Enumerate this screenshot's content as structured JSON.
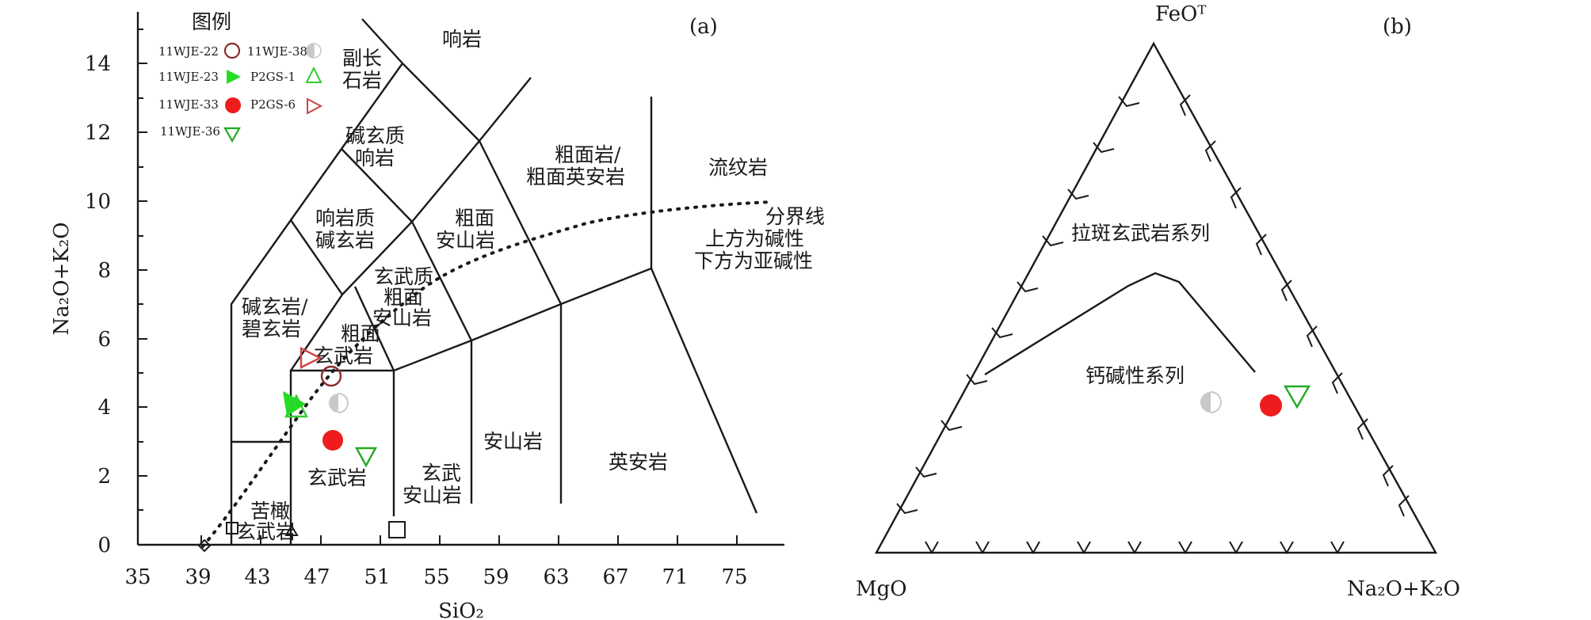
{
  "panel_a": {
    "tag": "(a)",
    "ylabel": "Na₂O+K₂O",
    "xlabel": "SiO₂",
    "yticks": [
      "0",
      "2",
      "4",
      "6",
      "8",
      "10",
      "12",
      "14"
    ],
    "xticks": [
      "35",
      "39",
      "43",
      "47",
      "51",
      "55",
      "59",
      "63",
      "67",
      "71",
      "75"
    ],
    "legend": {
      "title": "图例",
      "items": [
        {
          "label": "11WJE-22",
          "symbol": "open-circle",
          "color": "#8b2a2a"
        },
        {
          "label": "11WJE-38",
          "symbol": "half-circle",
          "color": "#c8c8c8"
        },
        {
          "label": "11WJE-23",
          "symbol": "filled-triangle-right",
          "color": "#22dd22"
        },
        {
          "label": "P2GS-1",
          "symbol": "open-triangle-up",
          "color": "#33cc33"
        },
        {
          "label": "11WJE-33",
          "symbol": "filled-circle",
          "color": "#ee1c1c"
        },
        {
          "label": "P2GS-6",
          "symbol": "open-triangle-right",
          "color": "#cc4444"
        },
        {
          "label": "11WJE-36",
          "symbol": "open-triangle-down",
          "color": "#22aa22"
        }
      ]
    },
    "fields": {
      "phonolite": "响岩",
      "foidite": [
        "副长",
        "石岩"
      ],
      "phonotephrite": [
        "碱玄质",
        "响岩"
      ],
      "tephriphonolite": [
        "响岩质",
        "碱玄岩"
      ],
      "trachyte": [
        "粗面岩/",
        "粗面英安岩"
      ],
      "trachyandesite": [
        "粗面",
        "安山岩"
      ],
      "basaltic_trachyandesite": [
        "玄武质",
        "粗面",
        "安山岩"
      ],
      "tephrite": [
        "碱玄岩/",
        "碧玄岩"
      ],
      "trachybasalt": [
        "粗面",
        "玄武岩"
      ],
      "rhyolite": "流纹岩",
      "boundary_note": [
        "分界线",
        "上方为碱性",
        "下方为亚碱性"
      ],
      "basalt": "玄武岩",
      "basaltic_andesite": [
        "玄武",
        "安山岩"
      ],
      "andesite": "安山岩",
      "dacite": "英安岩",
      "picrobasalt": [
        "苦橄",
        "玄武岩"
      ]
    }
  },
  "panel_b": {
    "tag": "(b)",
    "apex_top": "FeOᵀ",
    "apex_left": "MgO",
    "apex_right": "Na₂O+K₂O",
    "upper_field": "拉斑玄武岩系列",
    "lower_field": "钙碱性系列"
  },
  "chart_data": [
    {
      "type": "scatter",
      "title": "",
      "xlabel": "SiO2",
      "ylabel": "Na2O+K2O",
      "xlim": [
        35,
        77
      ],
      "ylim": [
        0,
        15
      ],
      "series": [
        {
          "name": "11WJE-22",
          "x": [
            48.3
          ],
          "y": [
            4.9
          ]
        },
        {
          "name": "11WJE-38",
          "x": [
            49.0
          ],
          "y": [
            4.1
          ]
        },
        {
          "name": "11WJE-23",
          "x": [
            45.4
          ],
          "y": [
            4.1
          ]
        },
        {
          "name": "P2GS-1",
          "x": [
            45.7
          ],
          "y": [
            3.9
          ]
        },
        {
          "name": "11WJE-33",
          "x": [
            48.4
          ],
          "y": [
            3.0
          ]
        },
        {
          "name": "P2GS-6",
          "x": [
            46.3
          ],
          "y": [
            5.5
          ]
        },
        {
          "name": "11WJE-36",
          "x": [
            50.3
          ],
          "y": [
            2.5
          ]
        }
      ]
    },
    {
      "type": "scatter",
      "title": "",
      "axes": [
        "MgO",
        "FeOT",
        "Na2O+K2O"
      ],
      "series": [
        {
          "name": "11WJE-38",
          "points": [
            "half-circle near calc-alkaline label"
          ]
        },
        {
          "name": "11WJE-33",
          "points": [
            "filled circle near right side"
          ]
        },
        {
          "name": "11WJE-36",
          "points": [
            "open down-triangle near right side"
          ]
        }
      ]
    }
  ]
}
